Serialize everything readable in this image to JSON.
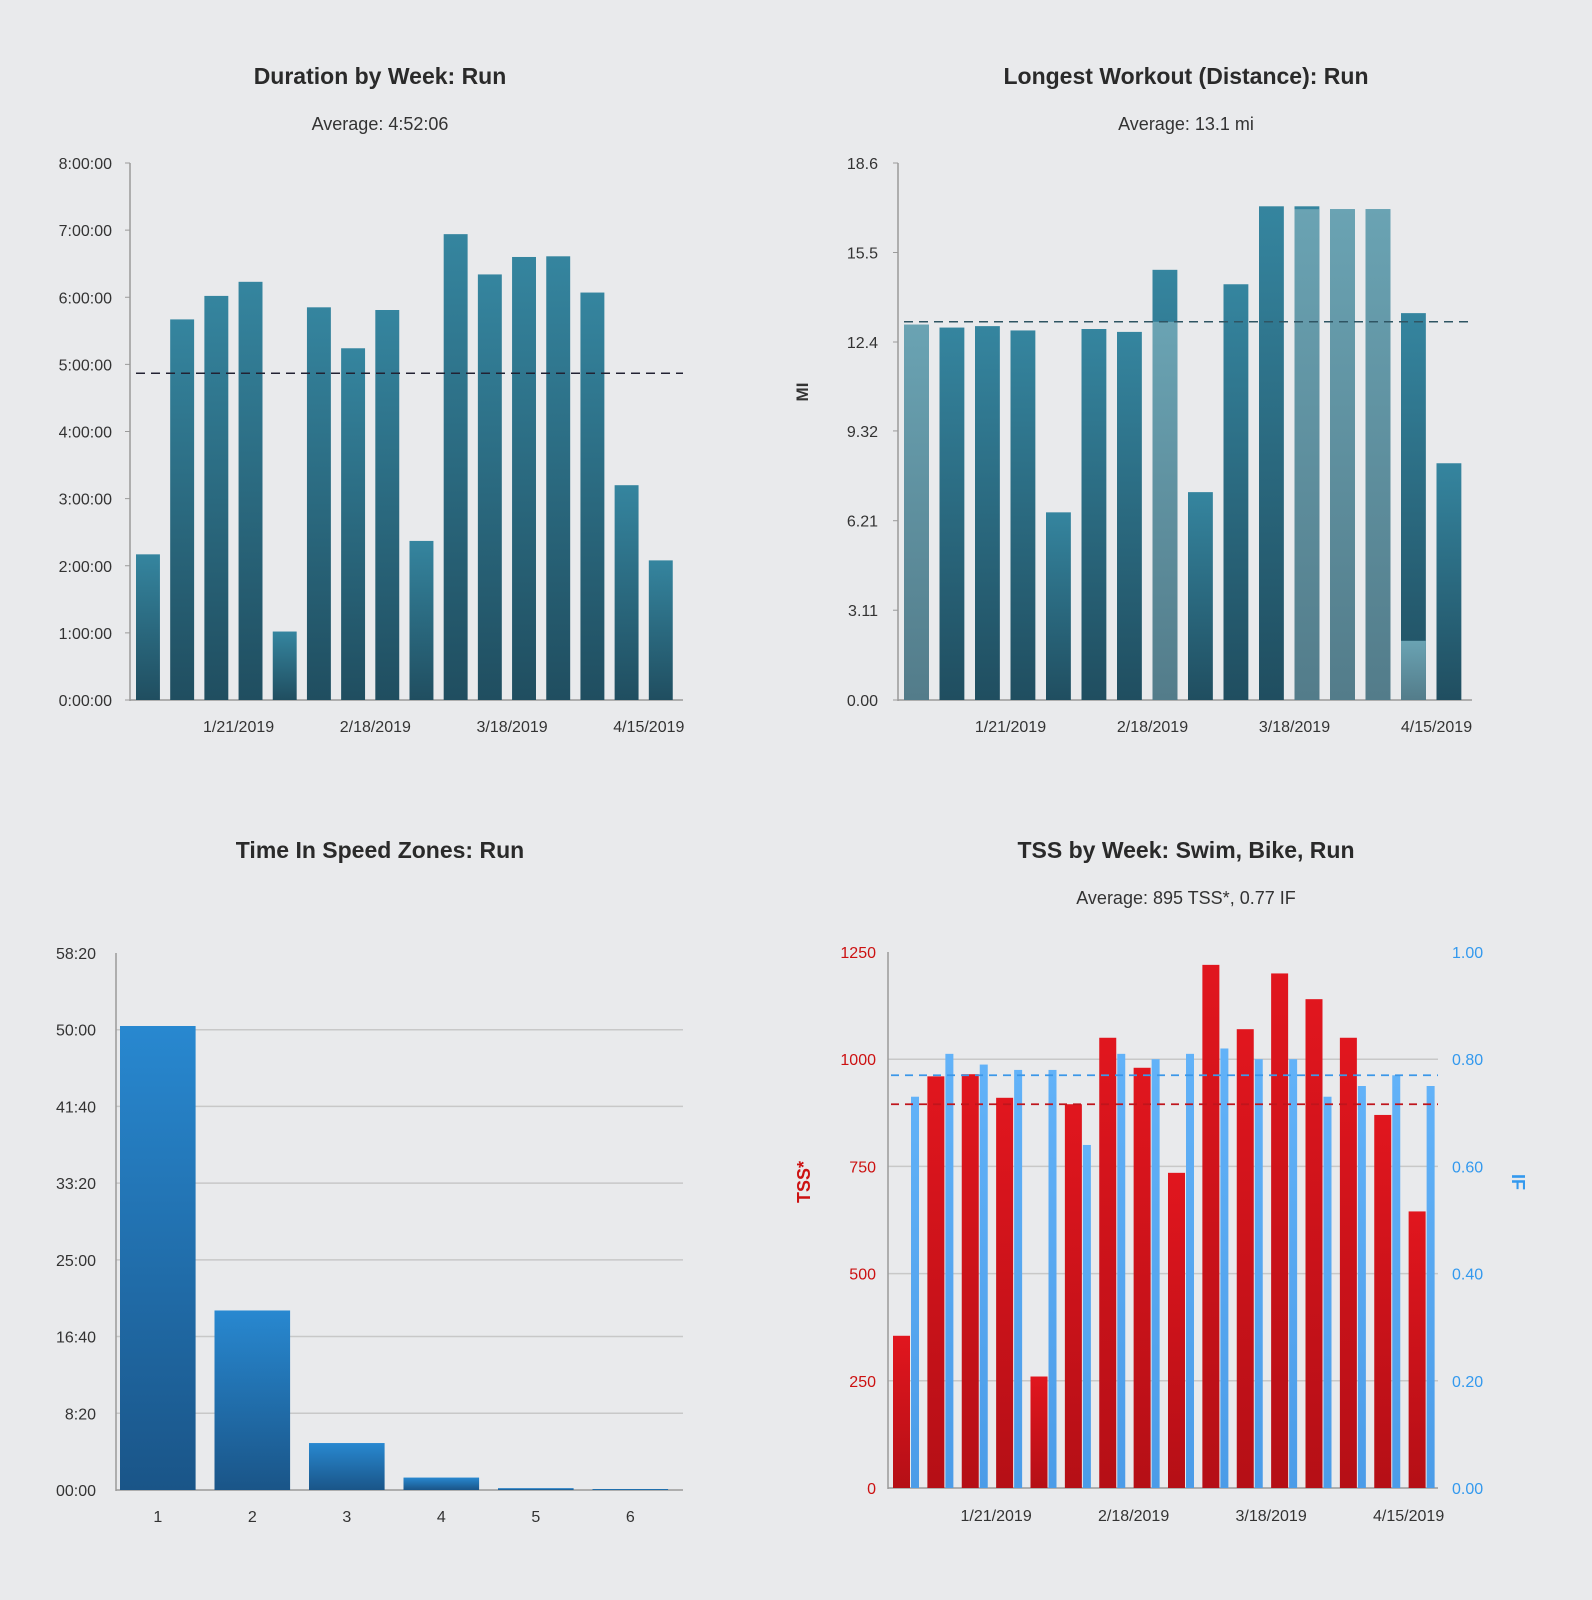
{
  "colors": {
    "background": "#e9eaec",
    "teal": "#2f7f99",
    "teal_light": "#6fa7b6",
    "blue": "#2581c4",
    "red": "#d9141c",
    "if_blue": "#5aabf2",
    "red_axis": "#cc1111",
    "blue_axis": "#3399ee"
  },
  "charts": [
    {
      "title": "Duration by Week: Run",
      "subtitle": "Average: 4:52:06",
      "chart_data": {
        "type": "bar",
        "title": "Duration by Week: Run",
        "subtitle": "Average: 4:52:06",
        "unit": "hours",
        "ylim": [
          0,
          8
        ],
        "yticks": [
          0,
          1,
          2,
          3,
          4,
          5,
          6,
          7,
          8
        ],
        "ytick_labels": [
          "0:00:00",
          "1:00:00",
          "2:00:00",
          "3:00:00",
          "4:00:00",
          "5:00:00",
          "6:00:00",
          "7:00:00",
          "8:00:00"
        ],
        "xtick_labels": [
          "1/21/2019",
          "2/18/2019",
          "3/18/2019",
          "4/15/2019"
        ],
        "xtick_bar_index": [
          3,
          7,
          11,
          15
        ],
        "average": 4.868,
        "values": [
          2.17,
          5.67,
          6.02,
          6.23,
          1.02,
          5.85,
          5.24,
          5.81,
          2.37,
          6.94,
          6.34,
          6.6,
          6.61,
          6.07,
          3.2,
          2.08
        ],
        "grid": false
      }
    },
    {
      "title": "Longest Workout (Distance): Run",
      "subtitle": "Average: 13.1 mi",
      "ylabel": "MI",
      "chart_data": {
        "type": "bar",
        "title": "Longest Workout (Distance): Run",
        "subtitle": "Average: 13.1 mi",
        "ylabel": "MI",
        "ylim": [
          0,
          18.6
        ],
        "yticks": [
          0,
          3.11,
          6.21,
          9.32,
          12.4,
          15.5,
          18.6
        ],
        "ytick_labels": [
          "0.00",
          "3.11",
          "6.21",
          "9.32",
          "12.4",
          "15.5",
          "18.6"
        ],
        "xtick_labels": [
          "1/21/2019",
          "2/18/2019",
          "3/18/2019",
          "4/15/2019"
        ],
        "xtick_bar_index": [
          3,
          7,
          11,
          15
        ],
        "average": 13.1,
        "values": [
          13.0,
          12.9,
          12.95,
          12.8,
          6.5,
          12.85,
          12.75,
          14.9,
          7.2,
          14.4,
          17.1,
          17.1,
          17.0,
          17.0,
          13.4,
          8.2
        ],
        "light_portion": [
          13.0,
          0,
          0,
          0,
          0,
          0,
          0,
          13.1,
          0,
          0,
          0,
          17.0,
          17.0,
          17.0,
          2.05,
          0
        ],
        "grid": false
      }
    },
    {
      "title": "Time In Speed Zones: Run",
      "subtitle": "",
      "chart_data": {
        "type": "bar",
        "title": "Time In Speed Zones: Run",
        "unit": "minutes",
        "categories": [
          "1",
          "2",
          "3",
          "4",
          "5",
          "6"
        ],
        "values": [
          50.4,
          19.5,
          5.1,
          1.35,
          0.2,
          0.05
        ],
        "ylim": [
          0,
          58.33
        ],
        "yticks": [
          0,
          8.333,
          16.667,
          25,
          33.333,
          41.667,
          50,
          58.333
        ],
        "ytick_labels": [
          "00:00",
          "8:20",
          "16:40",
          "25:00",
          "33:20",
          "41:40",
          "50:00",
          "58:20"
        ],
        "grid": true
      }
    },
    {
      "title": "TSS by Week: Swim, Bike, Run",
      "subtitle": "Average: 895 TSS*, 0.77 IF",
      "ylabel_left": "TSS*",
      "ylabel_right": "IF",
      "chart_data": {
        "type": "bar",
        "title": "TSS by Week: Swim, Bike, Run",
        "subtitle": "Average: 895 TSS*, 0.77 IF",
        "ylabel_left": "TSS*",
        "ylabel_right": "IF",
        "ylim_left": [
          0,
          1250
        ],
        "ylim_right": [
          0,
          1.0
        ],
        "yticks_left": [
          0,
          250,
          500,
          750,
          1000,
          1250
        ],
        "ytick_labels_left": [
          "0",
          "250",
          "500",
          "750",
          "1000",
          "1250"
        ],
        "yticks_right": [
          0,
          0.2,
          0.4,
          0.6,
          0.8,
          1.0
        ],
        "ytick_labels_right": [
          "0.00",
          "0.20",
          "0.40",
          "0.60",
          "0.80",
          "1.00"
        ],
        "xtick_labels": [
          "1/21/2019",
          "2/18/2019",
          "3/18/2019",
          "4/15/2019"
        ],
        "xtick_bar_index": [
          3,
          7,
          11,
          15
        ],
        "avg_tss": 895,
        "avg_if": 0.77,
        "series": [
          {
            "values": [
              355,
              960,
              965,
              910,
              260,
              895,
              1050,
              980,
              735,
              1220,
              1070,
              1200,
              1140,
              1050,
              870,
              645
            ]
          },
          {
            "values": [
              0.73,
              0.81,
              0.79,
              0.78,
              0.78,
              0.64,
              0.81,
              0.8,
              0.81,
              0.82,
              0.8,
              0.8,
              0.73,
              0.75,
              0.77,
              0.75
            ]
          }
        ],
        "grid": true
      }
    }
  ]
}
